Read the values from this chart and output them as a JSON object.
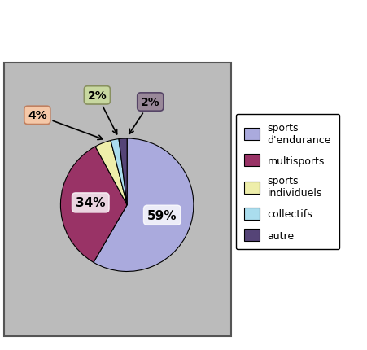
{
  "slices": [
    59,
    34,
    4,
    2,
    2
  ],
  "labels": [
    "sports d'endurance",
    "multisports",
    "sports individuels",
    "collectifs",
    "autre"
  ],
  "colors": [
    "#aaaadd",
    "#993366",
    "#eeeeaa",
    "#aaddee",
    "#554477"
  ],
  "pct_labels": [
    "59%",
    "34%",
    "4%",
    "2%",
    "2%"
  ],
  "legend_labels": [
    "sports\nd'endurance",
    "multisports",
    "sports\nindividuels",
    "collectifs",
    "autre"
  ],
  "legend_colors": [
    "#aaaadd",
    "#993366",
    "#eeeeaa",
    "#aaddee",
    "#554477"
  ],
  "background_color": "#bbbbbb",
  "startangle": 90
}
